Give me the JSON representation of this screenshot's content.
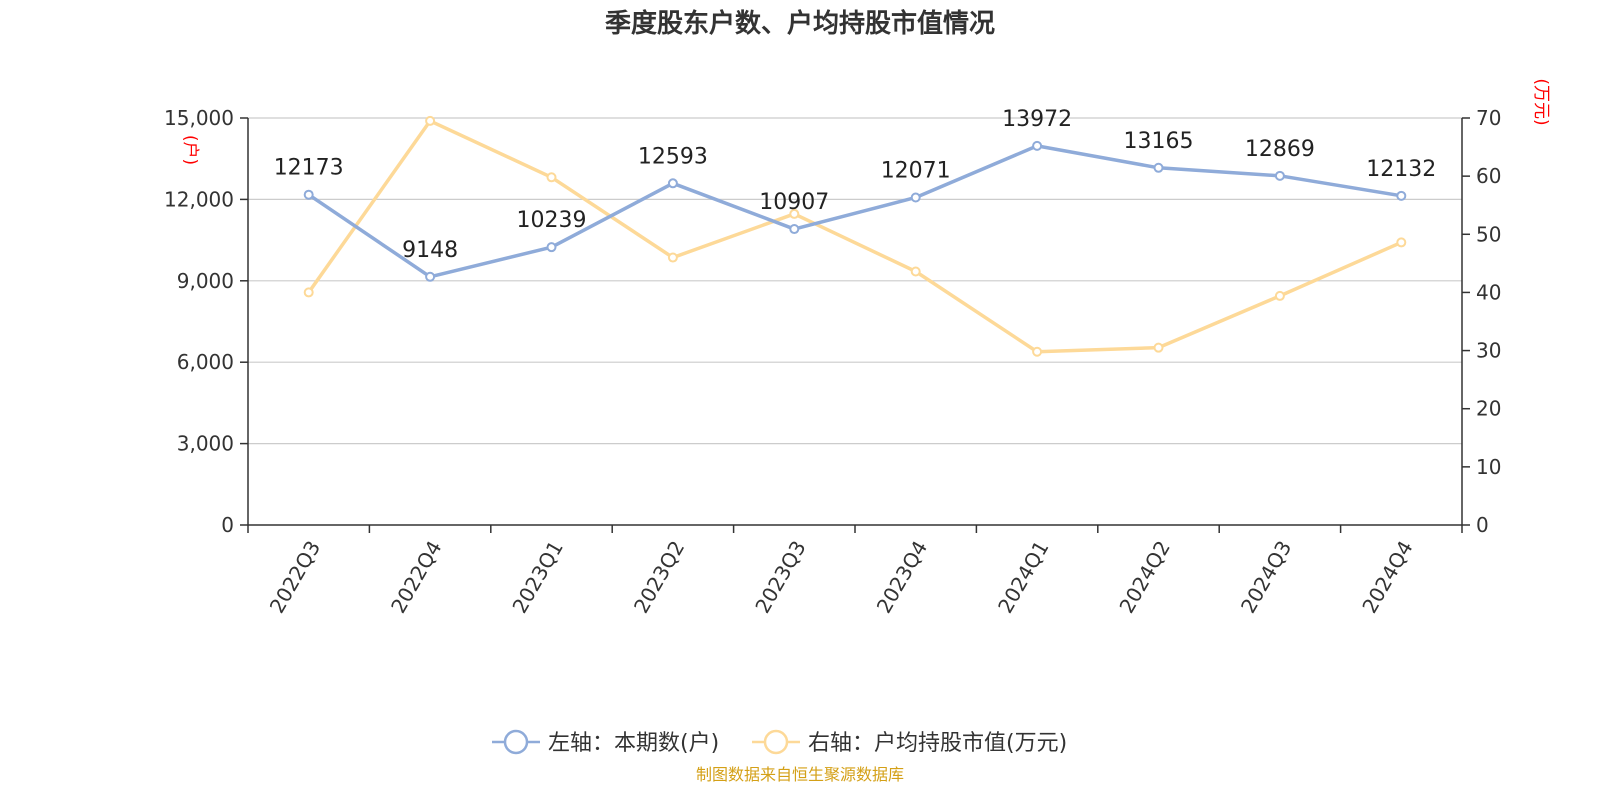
{
  "chart_data": {
    "type": "line",
    "title": "季度股东户数、户均持股市值情况",
    "categories": [
      "2022Q3",
      "2022Q4",
      "2023Q1",
      "2023Q2",
      "2023Q3",
      "2023Q4",
      "2024Q1",
      "2024Q2",
      "2024Q3",
      "2024Q4"
    ],
    "left_axis": {
      "unit_label": "(户)",
      "range": [
        0,
        15000
      ],
      "ticks": [
        "0",
        "3,000",
        "6,000",
        "9,000",
        "12,000",
        "15,000"
      ],
      "tick_values": [
        0,
        3000,
        6000,
        9000,
        12000,
        15000
      ]
    },
    "right_axis": {
      "unit_label": "(万元)",
      "range": [
        0,
        70
      ],
      "ticks": [
        "0",
        "10",
        "20",
        "30",
        "40",
        "50",
        "60",
        "70"
      ],
      "tick_values": [
        0,
        10,
        20,
        30,
        40,
        50,
        60,
        70
      ]
    },
    "series": [
      {
        "name": "左轴：本期数(户)",
        "axis": "left",
        "color": "#8fabd9",
        "values": [
          12173,
          9148,
          10239,
          12593,
          10907,
          12071,
          13972,
          13165,
          12869,
          12132
        ],
        "labels": [
          "12173",
          "9148",
          "10239",
          "12593",
          "10907",
          "12071",
          "13972",
          "13165",
          "12869",
          "12132"
        ]
      },
      {
        "name": "右轴：户均持股市值(万元)",
        "axis": "right",
        "color": "#fdd998",
        "values": [
          40.0,
          69.5,
          59.8,
          46.0,
          53.5,
          43.6,
          29.8,
          30.5,
          39.4,
          48.6
        ]
      }
    ],
    "grid": true,
    "legend": "bottom-center"
  },
  "source": "制图数据来自恒生聚源数据库",
  "colors": {
    "unit_label": "#ff0000",
    "source": "#d4a017",
    "grid": "#cccccc",
    "axis": "#333333"
  }
}
